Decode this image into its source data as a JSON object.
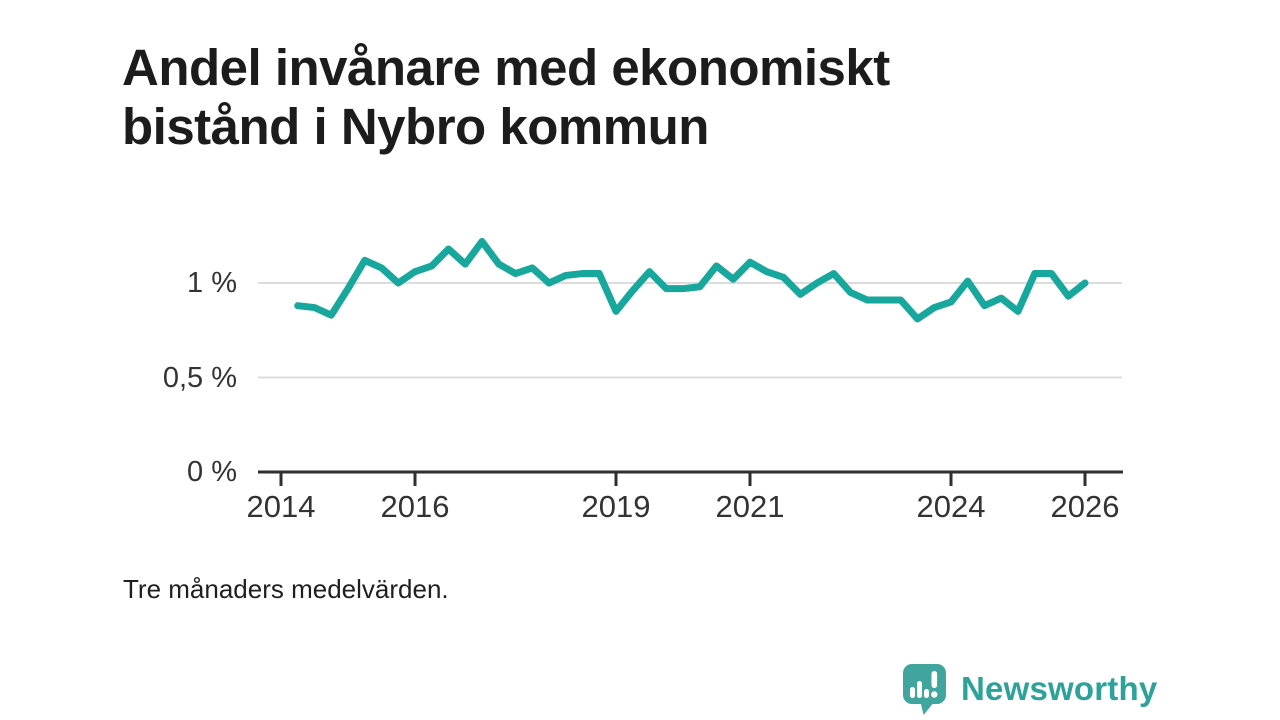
{
  "header": {
    "title": "Andel invånare med ekonomiskt bistånd i Nybro kommun",
    "title_lines": [
      "Andel invånare med ekonomiskt",
      "bistånd i Nybro kommun"
    ]
  },
  "chart_data": {
    "type": "line",
    "title": "Andel invånare med ekonomiskt bistånd i Nybro kommun",
    "note": "Tre månaders medelvärden.",
    "unit": "%",
    "color": "#18a79d",
    "x_start": 2014.25,
    "x_step": 0.25,
    "values": [
      0.88,
      0.87,
      0.83,
      0.97,
      1.12,
      1.08,
      1.0,
      1.06,
      1.09,
      1.18,
      1.1,
      1.22,
      1.1,
      1.05,
      1.08,
      1.0,
      1.04,
      1.05,
      1.05,
      0.85,
      0.96,
      1.06,
      0.97,
      0.97,
      0.98,
      1.09,
      1.02,
      1.11,
      1.06,
      1.03,
      0.94,
      1.0,
      1.05,
      0.95,
      0.91,
      0.91,
      0.91,
      0.81,
      0.87,
      0.9,
      1.01,
      0.88,
      0.92,
      0.85,
      1.05,
      1.05,
      0.93,
      1.0
    ],
    "x_ticks": [
      {
        "label": "2014",
        "value": 2014
      },
      {
        "label": "2016",
        "value": 2016
      },
      {
        "label": "2019",
        "value": 2019
      },
      {
        "label": "2021",
        "value": 2021
      },
      {
        "label": "2024",
        "value": 2024
      },
      {
        "label": "2026",
        "value": 2026
      }
    ],
    "y_ticks": [
      {
        "label": "0 %",
        "value": 0
      },
      {
        "label": "0,5 %",
        "value": 0.5
      },
      {
        "label": "1 %",
        "value": 1
      }
    ],
    "xlim": [
      2013.65,
      2026.55
    ],
    "ylim": [
      0,
      1.28
    ],
    "grid": "horizontal",
    "legend": "none"
  },
  "footer": {
    "note": "Tre månaders medelvärden."
  },
  "branding": {
    "logo_text": "Newsworthy",
    "logo_color": "#2ca29a",
    "icon_color": "#3fa59d",
    "icon": "newsworthy-speech-bubble-bar-chart-icon"
  }
}
